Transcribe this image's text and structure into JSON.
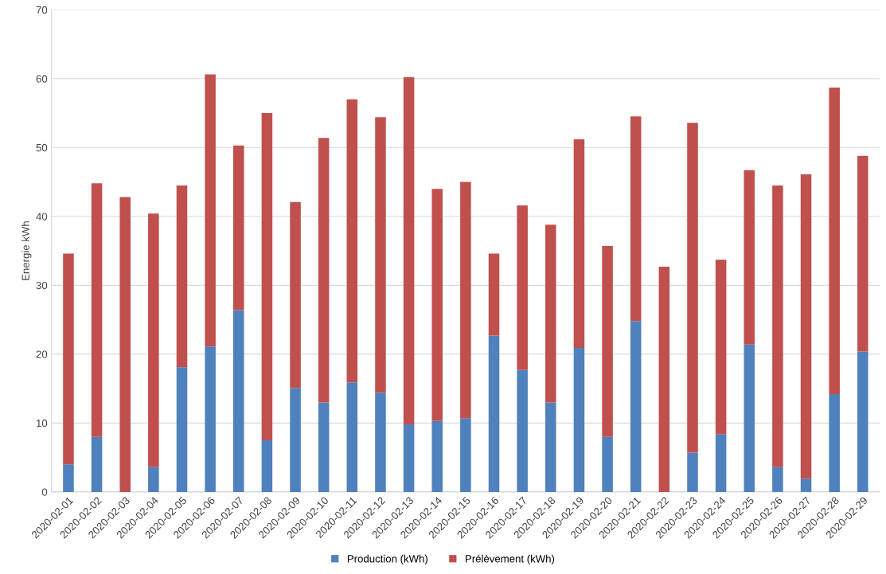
{
  "chart_data": {
    "type": "bar",
    "stacked": true,
    "ylabel": "Energie kWh",
    "categories": [
      "2020-02-01",
      "2020-02-02",
      "2020-02-03",
      "2020-02-04",
      "2020-02-05",
      "2020-02-06",
      "2020-02-07",
      "2020-02-08",
      "2020-02-09",
      "2020-02-10",
      "2020-02-11",
      "2020-02-12",
      "2020-02-13",
      "2020-02-14",
      "2020-02-15",
      "2020-02-16",
      "2020-02-17",
      "2020-02-18",
      "2020-02-19",
      "2020-02-20",
      "2020-02-21",
      "2020-02-22",
      "2020-02-23",
      "2020-02-24",
      "2020-02-25",
      "2020-02-26",
      "2020-02-27",
      "2020-02-28",
      "2020-02-29"
    ],
    "series": [
      {
        "name": "Production (kWh)",
        "color": "#4f81bd",
        "values": [
          4.0,
          8.0,
          0,
          3.6,
          18.1,
          21.1,
          26.4,
          7.5,
          15.1,
          13.0,
          15.9,
          14.4,
          9.8,
          10.3,
          10.7,
          22.7,
          17.7,
          13.0,
          20.9,
          8.0,
          24.8,
          0,
          5.7,
          8.4,
          21.4,
          3.6,
          1.9,
          14.2,
          20.4
        ]
      },
      {
        "name": "Prélèvement (kWh)",
        "color": "#c0504d",
        "values": [
          30.6,
          36.8,
          42.8,
          36.8,
          26.4,
          39.5,
          23.9,
          47.5,
          27.0,
          38.4,
          41.1,
          40.0,
          50.4,
          33.7,
          34.3,
          11.9,
          23.9,
          25.8,
          30.3,
          27.7,
          29.7,
          32.7,
          47.9,
          25.3,
          25.3,
          40.9,
          44.2,
          44.5,
          28.4
        ]
      }
    ],
    "ylim": [
      0,
      70
    ],
    "yticks": [
      0,
      10,
      20,
      30,
      40,
      50,
      60,
      70
    ],
    "grid": "y",
    "legend": "bottom"
  }
}
